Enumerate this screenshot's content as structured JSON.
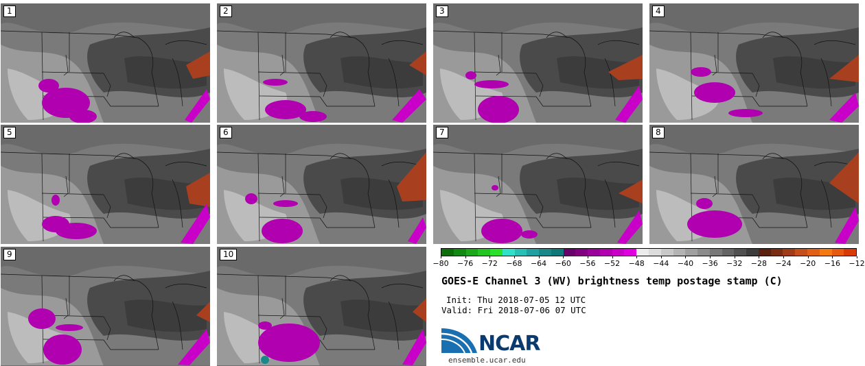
{
  "panels": [
    {
      "label": "1"
    },
    {
      "label": "2"
    },
    {
      "label": "3"
    },
    {
      "label": "4"
    },
    {
      "label": "5"
    },
    {
      "label": "6"
    },
    {
      "label": "7"
    },
    {
      "label": "8"
    },
    {
      "label": "9"
    },
    {
      "label": "10"
    }
  ],
  "colorbar": {
    "colors": [
      "#0b6e0b",
      "#128a12",
      "#1aa81a",
      "#22c422",
      "#2be02b",
      "#30e0c8",
      "#28c0b4",
      "#20a0a0",
      "#188888",
      "#107878",
      "#6a006a",
      "#800080",
      "#9a009a",
      "#b000b0",
      "#c800c8",
      "#e000e0",
      "#ececec",
      "#dcdcdc",
      "#c8c8c8",
      "#b4b4b4",
      "#a0a0a0",
      "#8c8c8c",
      "#787878",
      "#646464",
      "#505050",
      "#3c3c3c",
      "#5a2010",
      "#7a2e14",
      "#a03c18",
      "#c44e1c",
      "#e06018",
      "#f27a10",
      "#e85a10",
      "#d83a08"
    ],
    "ticks": [
      "−80",
      "−76",
      "−72",
      "−68",
      "−64",
      "−60",
      "−56",
      "−52",
      "−48",
      "−44",
      "−40",
      "−36",
      "−32",
      "−28",
      "−24",
      "−20",
      "−16",
      "−12"
    ]
  },
  "title": "GOES-E Channel 3 (WV) brightness temp postage stamp (C)",
  "init": "Init: Thu 2018-07-05 12 UTC",
  "valid": "Valid: Fri 2018-07-06 07 UTC",
  "logo": {
    "text": "NCAR",
    "url": "ensemble.ucar.edu",
    "icon": "ncar-logo-icon"
  }
}
